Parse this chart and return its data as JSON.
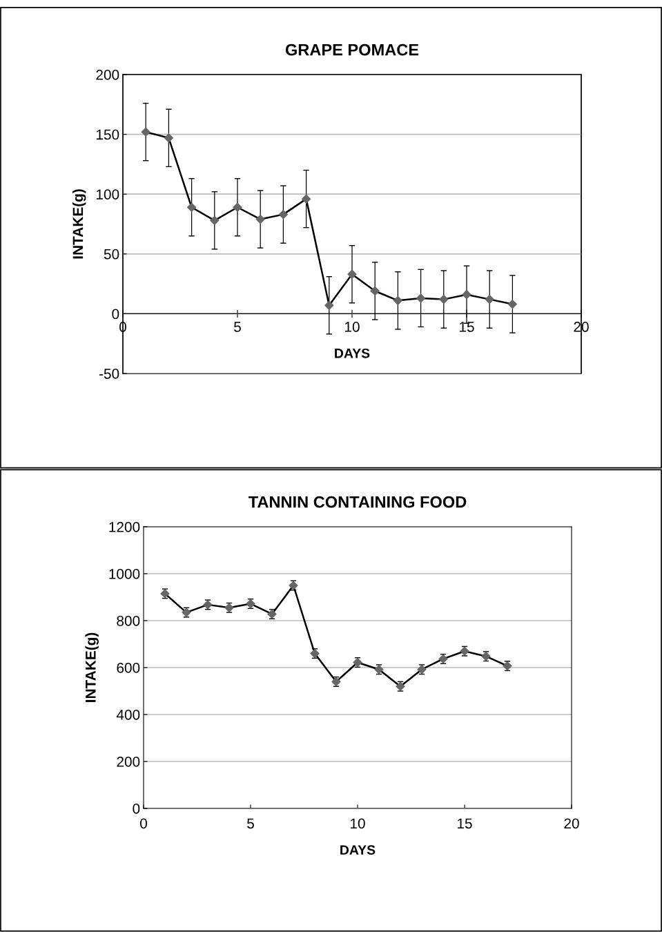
{
  "chart_data": [
    {
      "type": "line",
      "title": "GRAPE POMACE",
      "xlabel": "DAYS",
      "ylabel": "INTAKE(g)",
      "x": [
        1,
        2,
        3,
        4,
        5,
        6,
        7,
        8,
        9,
        10,
        11,
        12,
        13,
        14,
        15,
        16,
        17
      ],
      "series": [
        {
          "color": "#666666",
          "values": [
            152,
            147,
            89,
            78,
            89,
            79,
            83,
            96,
            7,
            33,
            19,
            11,
            13,
            12,
            16,
            12,
            8
          ],
          "errors": [
            24,
            24,
            24,
            24,
            24,
            24,
            24,
            24,
            24,
            24,
            24,
            24,
            24,
            24,
            24,
            24,
            24
          ]
        }
      ],
      "xlim": [
        0,
        20
      ],
      "xticks": [
        0,
        5,
        10,
        15,
        20
      ],
      "ylim": [
        -50,
        200
      ],
      "yticks": [
        -50,
        0,
        50,
        100,
        150,
        200
      ],
      "grid": "y",
      "marker": "diamond",
      "line_style": "solid"
    },
    {
      "type": "line",
      "title": "TANNIN CONTAINING FOOD",
      "xlabel": "DAYS",
      "ylabel": "INTAKE(g)",
      "x": [
        1,
        2,
        3,
        4,
        5,
        6,
        7,
        8,
        9,
        10,
        11,
        12,
        13,
        14,
        15,
        16,
        17
      ],
      "series": [
        {
          "color": "#666666",
          "values": [
            915,
            835,
            868,
            855,
            872,
            828,
            950,
            660,
            540,
            622,
            592,
            520,
            592,
            637,
            670,
            648,
            607
          ],
          "errors": [
            20,
            20,
            20,
            20,
            20,
            20,
            20,
            20,
            20,
            20,
            20,
            20,
            20,
            20,
            20,
            20,
            20
          ]
        }
      ],
      "xlim": [
        0,
        20
      ],
      "xticks": [
        0,
        5,
        10,
        15,
        20
      ],
      "ylim": [
        0,
        1200
      ],
      "yticks": [
        0,
        200,
        400,
        600,
        800,
        1000,
        1200
      ],
      "grid": "y",
      "marker": "diamond",
      "line_style": "solid"
    }
  ]
}
